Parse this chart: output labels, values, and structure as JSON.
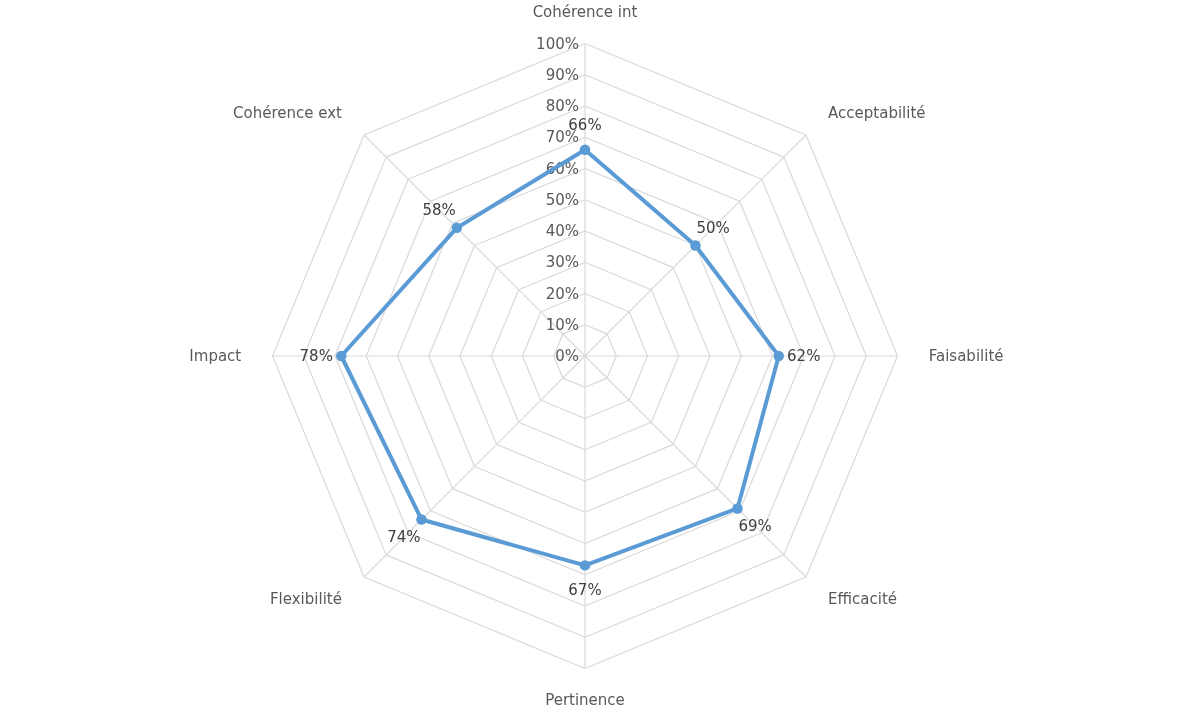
{
  "chart_data": {
    "type": "radar",
    "categories": [
      "Cohérence int",
      "Acceptabilité",
      "Faisabilité",
      "Efficacité",
      "Pertinence",
      "Flexibilité",
      "Impact",
      "Cohérence ext"
    ],
    "series": [
      {
        "color": "#5b9bd5",
        "values": [
          66,
          50,
          62,
          69,
          67,
          74,
          78,
          58
        ],
        "value_labels": [
          "66%",
          "50%",
          "62%",
          "69%",
          "67%",
          "74%",
          "78%",
          "58%"
        ]
      }
    ],
    "ylim": [
      0,
      100
    ],
    "yticks": [
      {
        "value": 0,
        "label": "0%"
      },
      {
        "value": 10,
        "label": "10%"
      },
      {
        "value": 20,
        "label": "20%"
      },
      {
        "value": 30,
        "label": "30%"
      },
      {
        "value": 40,
        "label": "40%"
      },
      {
        "value": 50,
        "label": "50%"
      },
      {
        "value": 60,
        "label": "60%"
      },
      {
        "value": 70,
        "label": "70%"
      },
      {
        "value": 80,
        "label": "80%"
      },
      {
        "value": 90,
        "label": "90%"
      },
      {
        "value": 100,
        "label": "100%"
      }
    ],
    "marker": "circle",
    "grid": true
  }
}
